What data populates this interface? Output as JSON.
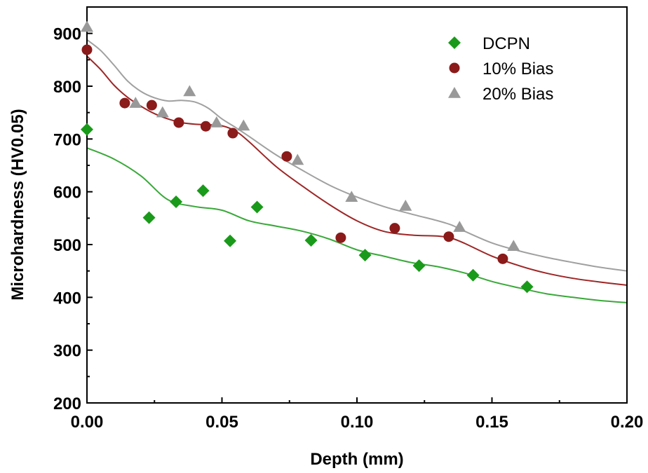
{
  "chart_data": {
    "type": "scatter",
    "xlabel": "Depth (mm)",
    "ylabel": "Microhardness (HV0.05)",
    "xlim": [
      0,
      0.2
    ],
    "ylim": [
      200,
      950
    ],
    "xticks": [
      0.0,
      0.05,
      0.1,
      0.15,
      0.2
    ],
    "xtick_labels": [
      "0.00",
      "0.05",
      "0.10",
      "0.15",
      "0.20"
    ],
    "yticks": [
      200,
      300,
      400,
      500,
      600,
      700,
      800,
      900
    ],
    "ytick_labels": [
      "200",
      "300",
      "400",
      "500",
      "600",
      "700",
      "800",
      "900"
    ],
    "grid": false,
    "legend_position": "top-right",
    "series": [
      {
        "name": "DCPN",
        "marker": "diamond",
        "color": "#1a9a1a",
        "line_color": "#3aa83a",
        "x": [
          0.0,
          0.023,
          0.033,
          0.043,
          0.053,
          0.063,
          0.083,
          0.103,
          0.123,
          0.143,
          0.163
        ],
        "y": [
          718,
          551,
          581,
          602,
          507,
          571,
          508,
          480,
          460,
          442,
          420
        ],
        "fit_x": [
          0.0,
          0.01,
          0.02,
          0.03,
          0.04,
          0.05,
          0.06,
          0.07,
          0.08,
          0.09,
          0.1,
          0.11,
          0.12,
          0.13,
          0.14,
          0.15,
          0.16,
          0.17,
          0.18,
          0.19,
          0.2
        ],
        "fit_y": [
          683,
          662,
          630,
          585,
          572,
          565,
          545,
          535,
          525,
          510,
          490,
          478,
          466,
          458,
          446,
          430,
          418,
          407,
          400,
          394,
          390
        ]
      },
      {
        "name": "10% Bias",
        "marker": "circle",
        "color": "#8b1a1a",
        "line_color": "#9e2626",
        "x": [
          0.0,
          0.014,
          0.024,
          0.034,
          0.044,
          0.054,
          0.074,
          0.094,
          0.114,
          0.134,
          0.154
        ],
        "y": [
          869,
          768,
          764,
          731,
          724,
          711,
          667,
          513,
          531,
          515,
          473
        ],
        "fit_x": [
          0.0,
          0.005,
          0.01,
          0.015,
          0.02,
          0.025,
          0.03,
          0.035,
          0.04,
          0.045,
          0.05,
          0.055,
          0.06,
          0.07,
          0.08,
          0.09,
          0.1,
          0.11,
          0.12,
          0.13,
          0.135,
          0.14,
          0.15,
          0.16,
          0.17,
          0.18,
          0.19,
          0.2
        ],
        "fit_y": [
          857,
          832,
          802,
          779,
          762,
          748,
          738,
          731,
          728,
          727,
          725,
          715,
          695,
          648,
          610,
          575,
          545,
          525,
          518,
          516,
          512,
          502,
          478,
          460,
          446,
          436,
          429,
          423
        ]
      },
      {
        "name": "20% Bias",
        "marker": "triangle",
        "color": "#999999",
        "line_color": "#a0a0a0",
        "x": [
          0.0,
          0.018,
          0.028,
          0.038,
          0.048,
          0.058,
          0.078,
          0.098,
          0.118,
          0.138,
          0.158
        ],
        "y": [
          912,
          768,
          750,
          790,
          731,
          725,
          660,
          590,
          573,
          533,
          497
        ],
        "fit_x": [
          0.0,
          0.005,
          0.01,
          0.015,
          0.02,
          0.025,
          0.03,
          0.035,
          0.04,
          0.045,
          0.05,
          0.055,
          0.06,
          0.07,
          0.08,
          0.09,
          0.1,
          0.11,
          0.12,
          0.13,
          0.135,
          0.14,
          0.15,
          0.16,
          0.17,
          0.18,
          0.19,
          0.2
        ],
        "fit_y": [
          888,
          868,
          840,
          810,
          790,
          778,
          772,
          773,
          770,
          758,
          738,
          722,
          705,
          670,
          640,
          612,
          590,
          572,
          558,
          545,
          537,
          525,
          503,
          488,
          476,
          466,
          457,
          450
        ]
      }
    ]
  }
}
